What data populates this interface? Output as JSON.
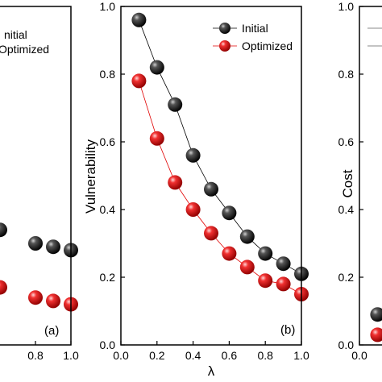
{
  "chart_data": [
    {
      "panel": "(a)",
      "type": "scatter",
      "xlim": [
        0.0,
        1.0
      ],
      "ylim": [
        0.0,
        1.0
      ],
      "x_ticks": [
        "0.8",
        "1.0"
      ],
      "legend": [
        "nitial",
        "Optimized"
      ],
      "series": [
        {
          "name": "Initial",
          "color": "#000000",
          "x": [
            0.6,
            0.8,
            0.9,
            1.0
          ],
          "y": [
            0.34,
            0.3,
            0.29,
            0.28
          ]
        },
        {
          "name": "Optimized",
          "color": "#e00000",
          "x": [
            0.6,
            0.8,
            0.9,
            1.0
          ],
          "y": [
            0.17,
            0.14,
            0.13,
            0.12
          ]
        }
      ],
      "label": "(a)"
    },
    {
      "panel": "(b)",
      "type": "line",
      "xlabel": "λ",
      "ylabel": "Vulnerability",
      "xlim": [
        0.0,
        1.0
      ],
      "ylim": [
        0.0,
        1.0
      ],
      "x_ticks": [
        "0.0",
        "0.2",
        "0.4",
        "0.6",
        "0.8",
        "1.0"
      ],
      "y_ticks": [
        "0.0",
        "0.2",
        "0.4",
        "0.6",
        "0.8",
        "1.0"
      ],
      "legend": [
        "Initial",
        "Optimized"
      ],
      "legend_position": "top-right",
      "series": [
        {
          "name": "Initial",
          "color": "#000000",
          "x": [
            0.1,
            0.2,
            0.3,
            0.4,
            0.5,
            0.6,
            0.7,
            0.8,
            0.9,
            1.0
          ],
          "y": [
            0.96,
            0.82,
            0.71,
            0.56,
            0.46,
            0.39,
            0.32,
            0.27,
            0.24,
            0.21
          ]
        },
        {
          "name": "Optimized",
          "color": "#e00000",
          "x": [
            0.1,
            0.2,
            0.3,
            0.4,
            0.5,
            0.6,
            0.7,
            0.8,
            0.9,
            1.0
          ],
          "y": [
            0.78,
            0.61,
            0.48,
            0.4,
            0.33,
            0.27,
            0.23,
            0.19,
            0.18,
            0.15
          ]
        }
      ],
      "label": "(b)"
    },
    {
      "panel": "(c)",
      "type": "scatter",
      "ylabel": "Cost",
      "xlim": [
        0.0,
        1.0
      ],
      "ylim": [
        0.0,
        1.0
      ],
      "x_ticks": [
        "0.0"
      ],
      "y_ticks": [
        "0.0",
        "0.2",
        "0.4",
        "0.6",
        "0.8",
        "1.0"
      ],
      "series": [
        {
          "name": "Initial",
          "color": "#000000",
          "x": [
            0.1
          ],
          "y": [
            0.09
          ]
        },
        {
          "name": "Optimized",
          "color": "#e00000",
          "x": [
            0.1
          ],
          "y": [
            0.03
          ]
        }
      ]
    }
  ],
  "colors": {
    "initial": "#000000",
    "optimized": "#e00000"
  }
}
